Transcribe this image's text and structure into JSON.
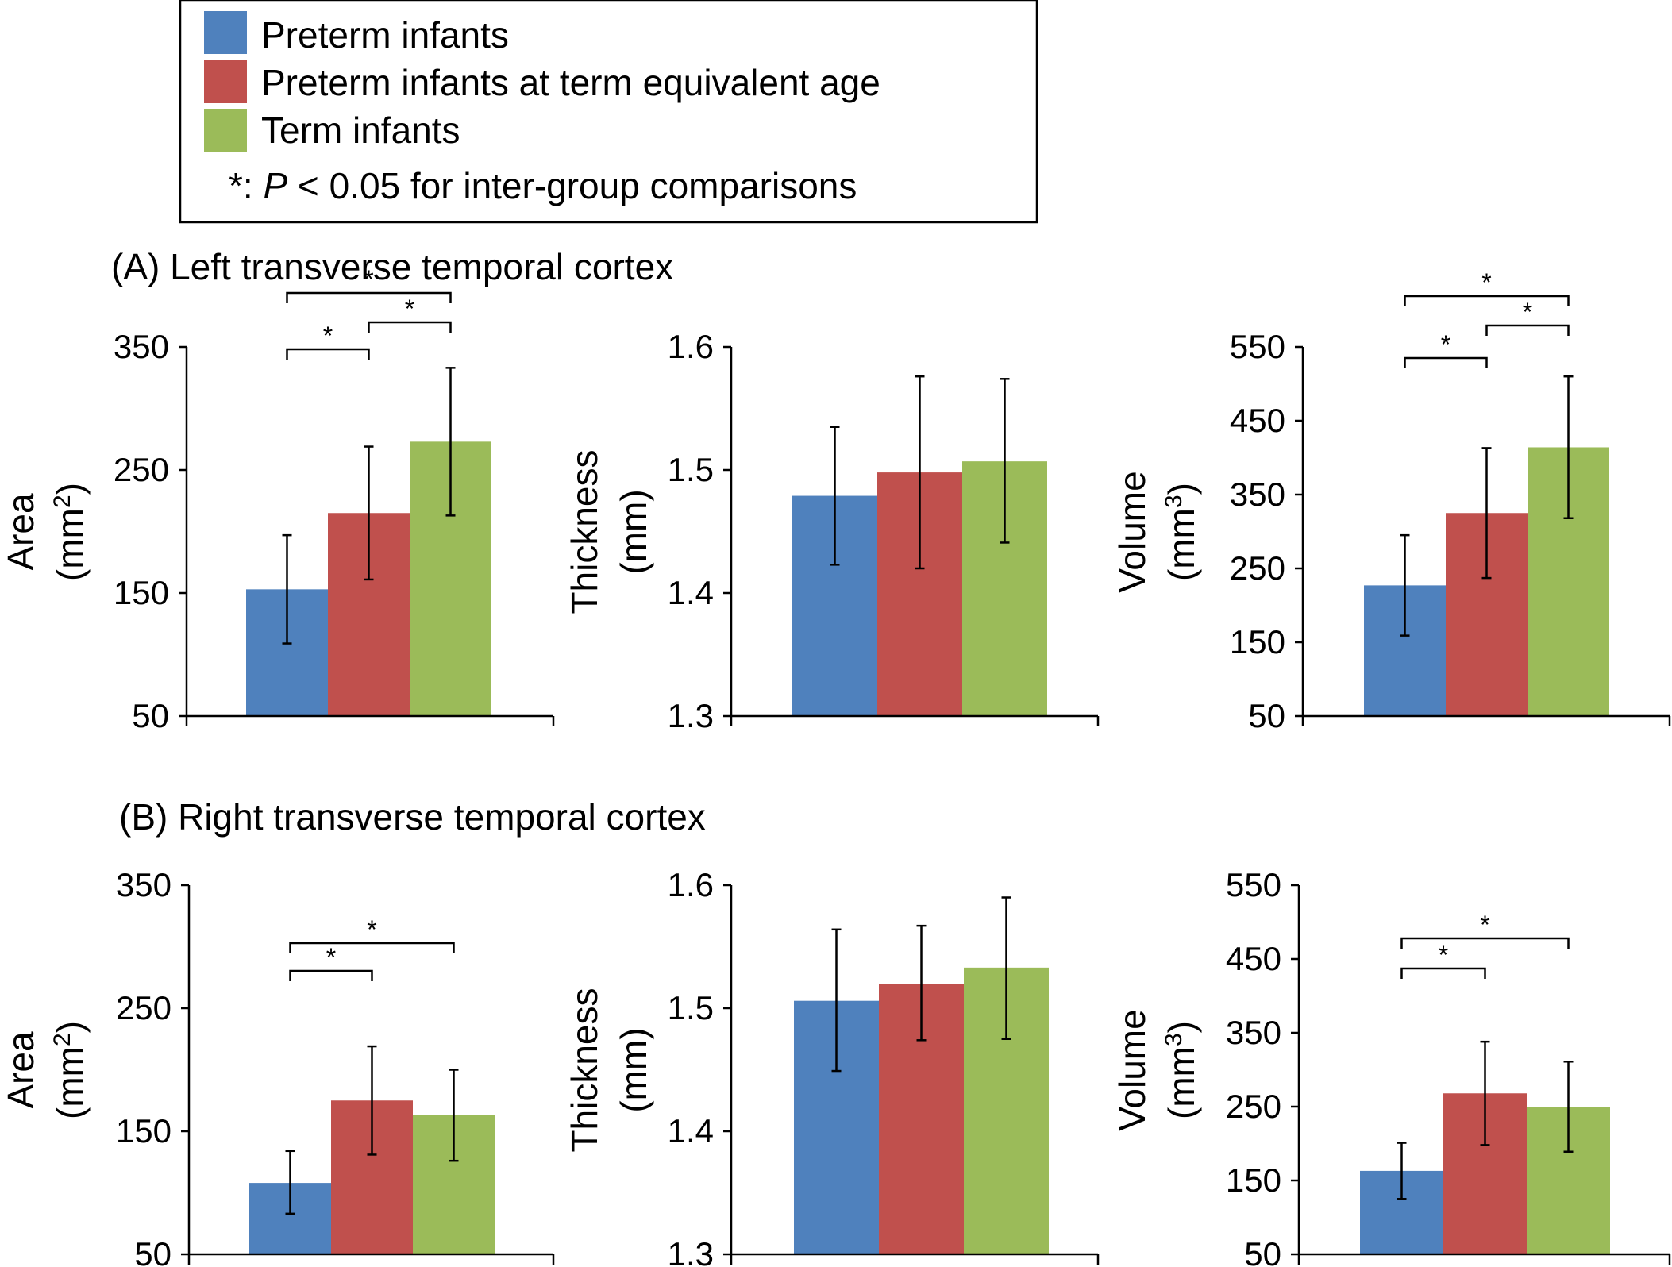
{
  "colors": {
    "preterm": "#4F81BD",
    "preterm_tea": "#C0504D",
    "term": "#9BBB59"
  },
  "legend": {
    "items": [
      {
        "label": "Preterm infants",
        "color": "#4F81BD"
      },
      {
        "label": "Preterm infants at term equivalent age",
        "color": "#C0504D"
      },
      {
        "label": "Term infants",
        "color": "#9BBB59"
      }
    ],
    "note_prefix": "*: ",
    "note_p": "P",
    "note_suffix": " < 0.05 for inter-group comparisons"
  },
  "sections": [
    {
      "title": "(A) Left transverse temporal cortex"
    },
    {
      "title": "(B) Right transverse temporal cortex"
    }
  ],
  "chart_data": [
    {
      "type": "bar",
      "section": "A",
      "measure": "Area",
      "title": "",
      "ylabel_main": "Area",
      "ylabel_unit_pre": "(mm",
      "ylabel_unit_sup": "2",
      "ylabel_unit_post": ")",
      "ylim": [
        50,
        350
      ],
      "yticks": [
        "50",
        "150",
        "250",
        "350"
      ],
      "ytick_values": [
        50,
        150,
        250,
        350
      ],
      "series": [
        {
          "name": "Preterm infants",
          "value": 153,
          "err_low": 109,
          "err_high": 197
        },
        {
          "name": "Preterm infants at term equivalent age",
          "value": 215,
          "err_low": 161,
          "err_high": 269
        },
        {
          "name": "Term infants",
          "value": 273,
          "err_low": 213,
          "err_high": 333
        }
      ],
      "significance": [
        {
          "from": 0,
          "to": 1,
          "label": "*"
        },
        {
          "from": 1,
          "to": 2,
          "label": "*"
        },
        {
          "from": 0,
          "to": 2,
          "label": "*"
        }
      ]
    },
    {
      "type": "bar",
      "section": "A",
      "measure": "Thickness",
      "title": "",
      "ylabel_main": "Thickness",
      "ylabel_unit_pre": "(mm)",
      "ylabel_unit_sup": "",
      "ylabel_unit_post": "",
      "ylim": [
        1.3,
        1.6
      ],
      "yticks": [
        "1.3",
        "1.4",
        "1.5",
        "1.6"
      ],
      "ytick_values": [
        1.3,
        1.4,
        1.5,
        1.6
      ],
      "series": [
        {
          "name": "Preterm infants",
          "value": 1.479,
          "err_low": 1.423,
          "err_high": 1.535
        },
        {
          "name": "Preterm infants at term equivalent age",
          "value": 1.498,
          "err_low": 1.42,
          "err_high": 1.576
        },
        {
          "name": "Term infants",
          "value": 1.507,
          "err_low": 1.441,
          "err_high": 1.574
        }
      ],
      "significance": []
    },
    {
      "type": "bar",
      "section": "A",
      "measure": "Volume",
      "title": "",
      "ylabel_main": "Volume",
      "ylabel_unit_pre": "(mm",
      "ylabel_unit_sup": "3",
      "ylabel_unit_post": ")",
      "ylim": [
        50,
        550
      ],
      "yticks": [
        "50",
        "150",
        "250",
        "350",
        "450",
        "550"
      ],
      "ytick_values": [
        50,
        150,
        250,
        350,
        450,
        550
      ],
      "series": [
        {
          "name": "Preterm infants",
          "value": 227,
          "err_low": 159,
          "err_high": 295
        },
        {
          "name": "Preterm infants at term equivalent age",
          "value": 325,
          "err_low": 237,
          "err_high": 413
        },
        {
          "name": "Term infants",
          "value": 414,
          "err_low": 318,
          "err_high": 510
        }
      ],
      "significance": [
        {
          "from": 0,
          "to": 1,
          "label": "*"
        },
        {
          "from": 1,
          "to": 2,
          "label": "*"
        },
        {
          "from": 0,
          "to": 2,
          "label": "*"
        }
      ]
    },
    {
      "type": "bar",
      "section": "B",
      "measure": "Area",
      "title": "",
      "ylabel_main": "Area",
      "ylabel_unit_pre": "(mm",
      "ylabel_unit_sup": "2",
      "ylabel_unit_post": ")",
      "ylim": [
        50,
        350
      ],
      "yticks": [
        "50",
        "150",
        "250",
        "350"
      ],
      "ytick_values": [
        50,
        150,
        250,
        350
      ],
      "series": [
        {
          "name": "Preterm infants",
          "value": 108,
          "err_low": 83,
          "err_high": 134
        },
        {
          "name": "Preterm infants at term equivalent age",
          "value": 175,
          "err_low": 131,
          "err_high": 219
        },
        {
          "name": "Term infants",
          "value": 163,
          "err_low": 126,
          "err_high": 200
        }
      ],
      "significance": [
        {
          "from": 0,
          "to": 1,
          "label": "*"
        },
        {
          "from": 0,
          "to": 2,
          "label": "*"
        }
      ]
    },
    {
      "type": "bar",
      "section": "B",
      "measure": "Thickness",
      "title": "",
      "ylabel_main": "Thickness",
      "ylabel_unit_pre": "(mm)",
      "ylabel_unit_sup": "",
      "ylabel_unit_post": "",
      "ylim": [
        1.3,
        1.6
      ],
      "yticks": [
        "1.3",
        "1.4",
        "1.5",
        "1.6"
      ],
      "ytick_values": [
        1.3,
        1.4,
        1.5,
        1.6
      ],
      "series": [
        {
          "name": "Preterm infants",
          "value": 1.506,
          "err_low": 1.449,
          "err_high": 1.564
        },
        {
          "name": "Preterm infants at term equivalent age",
          "value": 1.52,
          "err_low": 1.474,
          "err_high": 1.567
        },
        {
          "name": "Term infants",
          "value": 1.533,
          "err_low": 1.475,
          "err_high": 1.59
        }
      ],
      "significance": []
    },
    {
      "type": "bar",
      "section": "B",
      "measure": "Volume",
      "title": "",
      "ylabel_main": "Volume",
      "ylabel_unit_pre": "(mm",
      "ylabel_unit_sup": "3",
      "ylabel_unit_post": ")",
      "ylim": [
        50,
        550
      ],
      "yticks": [
        "50",
        "150",
        "250",
        "350",
        "450",
        "550"
      ],
      "ytick_values": [
        50,
        150,
        250,
        350,
        450,
        550
      ],
      "series": [
        {
          "name": "Preterm infants",
          "value": 163,
          "err_low": 125,
          "err_high": 201
        },
        {
          "name": "Preterm infants at term equivalent age",
          "value": 268,
          "err_low": 198,
          "err_high": 338
        },
        {
          "name": "Term infants",
          "value": 250,
          "err_low": 189,
          "err_high": 311
        }
      ],
      "significance": [
        {
          "from": 0,
          "to": 1,
          "label": "*"
        },
        {
          "from": 0,
          "to": 2,
          "label": "*"
        }
      ]
    }
  ]
}
